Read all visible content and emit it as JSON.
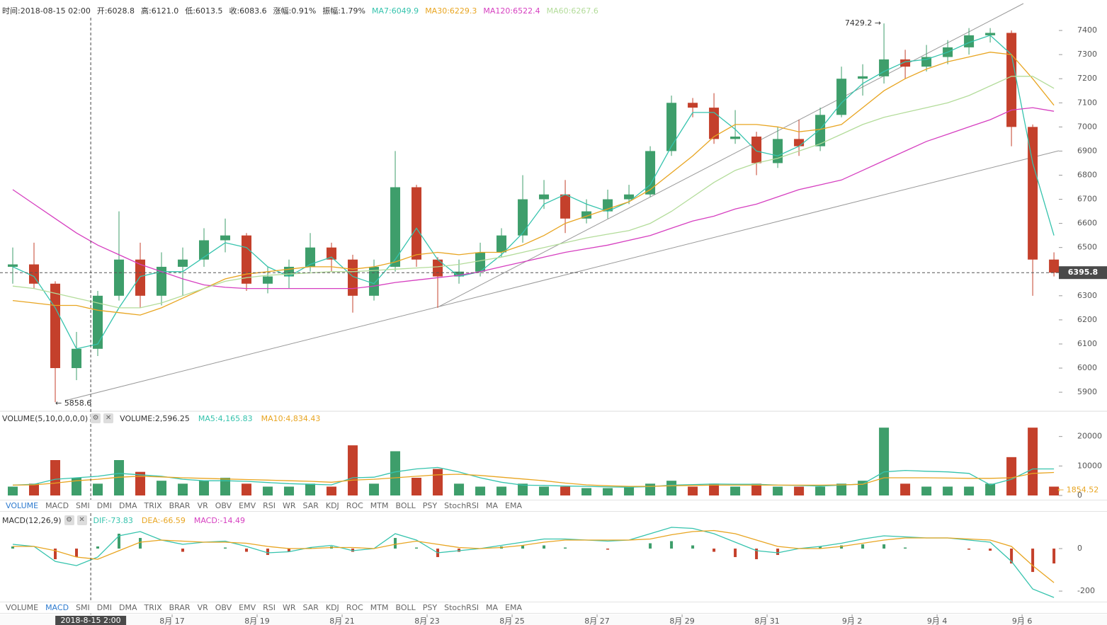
{
  "chart_data": [
    {
      "type": "candlestick",
      "header": [
        {
          "text": "时间:2018-08-15 02:00",
          "color": "#333333"
        },
        {
          "text": "开:6028.8",
          "color": "#333333"
        },
        {
          "text": "高:6121.0",
          "color": "#333333"
        },
        {
          "text": "低:6013.5",
          "color": "#333333"
        },
        {
          "text": "收:6083.6",
          "color": "#333333"
        },
        {
          "text": "涨幅:0.91%",
          "color": "#333333"
        },
        {
          "text": "振幅:1.79%",
          "color": "#333333"
        }
      ],
      "up_color": "#3e9e6b",
      "down_color": "#c4402b",
      "candles": {
        "open": [
          6420,
          6430,
          6350,
          6000,
          6080,
          6300,
          6450,
          6300,
          6420,
          6450,
          6530,
          6550,
          6350,
          6380,
          6420,
          6500,
          6450,
          6300,
          6420,
          6750,
          6450,
          6380,
          6400,
          6480,
          6550,
          6700,
          6720,
          6620,
          6650,
          6700,
          6720,
          6900,
          7100,
          7080,
          6950,
          6960,
          6850,
          6950,
          6920,
          7050,
          7200,
          7210,
          7280,
          7250,
          7290,
          7330,
          7380,
          7390,
          7000,
          6450
        ],
        "high": [
          6500,
          6520,
          6360,
          6150,
          6320,
          6650,
          6520,
          6480,
          6500,
          6580,
          6620,
          6560,
          6420,
          6450,
          6560,
          6520,
          6470,
          6450,
          6900,
          6760,
          6460,
          6450,
          6520,
          6580,
          6800,
          6780,
          6780,
          6700,
          6740,
          6760,
          6920,
          7130,
          7120,
          7140,
          7070,
          6980,
          7000,
          7030,
          7080,
          7250,
          7260,
          7429.2,
          7320,
          7340,
          7360,
          7410,
          7410,
          7400,
          7010,
          6480
        ],
        "low": [
          6350,
          6330,
          5858.6,
          5950,
          6050,
          6280,
          6250,
          6260,
          6300,
          6420,
          6480,
          6320,
          6310,
          6330,
          6400,
          6400,
          6230,
          6280,
          6400,
          6420,
          6250,
          6350,
          6380,
          6460,
          6520,
          6660,
          6560,
          6600,
          6620,
          6680,
          6710,
          6880,
          7040,
          6930,
          6930,
          6800,
          6830,
          6880,
          6900,
          7040,
          7130,
          7180,
          7200,
          7230,
          7260,
          7300,
          7350,
          6920,
          6300,
          6380
        ],
        "close": [
          6430,
          6350,
          6000,
          6080,
          6300,
          6450,
          6300,
          6420,
          6450,
          6530,
          6550,
          6350,
          6380,
          6420,
          6500,
          6450,
          6300,
          6420,
          6750,
          6450,
          6380,
          6400,
          6480,
          6550,
          6700,
          6720,
          6620,
          6650,
          6700,
          6720,
          6900,
          7100,
          7080,
          6950,
          6960,
          6850,
          6950,
          6920,
          7050,
          7200,
          7210,
          7280,
          7250,
          7290,
          7330,
          7380,
          7390,
          7000,
          6450,
          6395.8
        ]
      },
      "series": [
        {
          "label": "MA7:6049.9",
          "color": "#35c3ad",
          "values": [
            6420,
            6380,
            6250,
            6080,
            6100,
            6250,
            6380,
            6400,
            6400,
            6460,
            6520,
            6500,
            6420,
            6380,
            6430,
            6460,
            6380,
            6350,
            6450,
            6580,
            6450,
            6380,
            6400,
            6470,
            6560,
            6680,
            6720,
            6680,
            6650,
            6690,
            6760,
            6920,
            7060,
            7060,
            6990,
            6900,
            6880,
            6920,
            6990,
            7100,
            7180,
            7230,
            7270,
            7280,
            7310,
            7350,
            7380,
            7300,
            6850,
            6550
          ]
        },
        {
          "label": "MA30:6229.3",
          "color": "#e8a521",
          "values": [
            6280,
            6270,
            6260,
            6260,
            6240,
            6230,
            6220,
            6250,
            6290,
            6330,
            6370,
            6390,
            6400,
            6410,
            6420,
            6420,
            6410,
            6420,
            6440,
            6470,
            6480,
            6470,
            6480,
            6480,
            6510,
            6550,
            6600,
            6630,
            6660,
            6690,
            6740,
            6810,
            6880,
            6960,
            7010,
            7010,
            7000,
            6980,
            6990,
            7010,
            7080,
            7150,
            7200,
            7240,
            7270,
            7290,
            7310,
            7300,
            7200,
            7090
          ]
        },
        {
          "label": "MA120:6522.4",
          "color": "#d63fc0",
          "values": [
            6740,
            6680,
            6620,
            6560,
            6510,
            6470,
            6430,
            6400,
            6370,
            6345,
            6335,
            6330,
            6330,
            6330,
            6330,
            6330,
            6330,
            6340,
            6355,
            6365,
            6375,
            6385,
            6400,
            6420,
            6440,
            6460,
            6480,
            6495,
            6510,
            6530,
            6550,
            6580,
            6610,
            6630,
            6660,
            6680,
            6710,
            6740,
            6760,
            6780,
            6820,
            6860,
            6900,
            6940,
            6970,
            7000,
            7030,
            7070,
            7080,
            7065
          ]
        },
        {
          "label": "MA60:6267.6",
          "color": "#b3dc9a",
          "values": [
            6340,
            6330,
            6310,
            6290,
            6270,
            6250,
            6250,
            6270,
            6300,
            6330,
            6360,
            6375,
            6385,
            6390,
            6395,
            6400,
            6400,
            6405,
            6410,
            6415,
            6420,
            6430,
            6445,
            6460,
            6480,
            6500,
            6520,
            6540,
            6555,
            6570,
            6600,
            6650,
            6710,
            6770,
            6820,
            6850,
            6870,
            6900,
            6930,
            6970,
            7010,
            7040,
            7060,
            7080,
            7100,
            7130,
            7170,
            7210,
            7210,
            7160
          ]
        }
      ],
      "high_label": "7429.2 →",
      "low_label": "← 5858.6",
      "last_price": 6395.8,
      "ylim": [
        5824,
        7453
      ],
      "yticks": [
        5900,
        6000,
        6100,
        6200,
        6300,
        6400,
        6500,
        6600,
        6700,
        6800,
        6900,
        7000,
        7100,
        7200,
        7300,
        7400
      ]
    },
    {
      "type": "bar",
      "title": "VOLUME(5,10,0,0,0,0)",
      "value_label": "VOLUME:2,596.25",
      "values": [
        3000,
        4000,
        12000,
        6000,
        4000,
        12000,
        8000,
        5000,
        4000,
        5000,
        6000,
        4000,
        3000,
        3000,
        4000,
        3000,
        17000,
        4000,
        15000,
        6000,
        9000,
        4000,
        3000,
        3000,
        4000,
        3000,
        3000,
        2500,
        2500,
        3000,
        4000,
        5000,
        3000,
        4000,
        3000,
        4000,
        3000,
        3000,
        3000,
        4000,
        5000,
        23000,
        4000,
        3000,
        3000,
        3000,
        4000,
        13000,
        23000,
        3000
      ],
      "series": [
        {
          "label": "MA5:4,165.83",
          "color": "#35c3ad",
          "values": [
            3500,
            3800,
            5500,
            6000,
            6500,
            7500,
            7000,
            6500,
            5500,
            5000,
            5000,
            4800,
            4400,
            4000,
            3800,
            3600,
            6000,
            6200,
            8000,
            9000,
            9500,
            8000,
            6000,
            4500,
            3500,
            3400,
            3200,
            3100,
            2900,
            2800,
            3000,
            3500,
            3700,
            3900,
            3800,
            3800,
            3500,
            3400,
            3200,
            3500,
            3900,
            8000,
            8500,
            8200,
            8000,
            7500,
            3600,
            5500,
            9000,
            9000
          ]
        },
        {
          "label": "MA10:4,834.43",
          "color": "#e8a521",
          "values": [
            3500,
            3600,
            4200,
            5000,
            5500,
            6200,
            6500,
            6300,
            6000,
            5800,
            5600,
            5400,
            5200,
            5000,
            4800,
            4500,
            5200,
            5500,
            6000,
            6500,
            7000,
            7200,
            6800,
            6200,
            5600,
            5000,
            4200,
            3600,
            3300,
            3100,
            3100,
            3300,
            3400,
            3500,
            3500,
            3500,
            3500,
            3500,
            3500,
            3600,
            3800,
            6000,
            6000,
            6000,
            5900,
            5800,
            5800,
            6000,
            7500,
            7800
          ]
        }
      ],
      "last_volume": 1854.52,
      "last_volume_label": "← 1854.52",
      "tabs": [
        "VOLUME",
        "MACD",
        "SMI",
        "DMI",
        "DMA",
        "TRIX",
        "BRAR",
        "VR",
        "OBV",
        "EMV",
        "RSI",
        "WR",
        "SAR",
        "KDJ",
        "ROC",
        "MTM",
        "BOLL",
        "PSY",
        "StochRSI",
        "MA",
        "EMA"
      ],
      "active_tab": 0,
      "ylim": [
        0,
        24000
      ],
      "yticks": [
        0,
        10000,
        20000
      ]
    },
    {
      "type": "macd",
      "title": "MACD(12,26,9)",
      "series": [
        {
          "label": "DIF:-73.83",
          "color": "#35c3ad",
          "values": [
            20,
            10,
            -60,
            -80,
            -40,
            60,
            80,
            40,
            20,
            30,
            35,
            10,
            -20,
            -15,
            5,
            15,
            -10,
            0,
            70,
            40,
            -20,
            -10,
            0,
            15,
            30,
            45,
            45,
            40,
            35,
            40,
            70,
            100,
            95,
            70,
            30,
            -10,
            -20,
            0,
            10,
            25,
            45,
            60,
            55,
            50,
            50,
            40,
            30,
            -60,
            -190,
            -230
          ]
        },
        {
          "label": "DEA:-66.59",
          "color": "#e8a521",
          "values": [
            10,
            10,
            -10,
            -40,
            -50,
            -10,
            30,
            40,
            35,
            30,
            30,
            25,
            10,
            0,
            0,
            5,
            5,
            0,
            20,
            35,
            20,
            5,
            0,
            5,
            15,
            30,
            40,
            40,
            40,
            40,
            45,
            65,
            80,
            85,
            70,
            40,
            10,
            0,
            0,
            10,
            25,
            40,
            50,
            50,
            50,
            45,
            40,
            10,
            -80,
            -160
          ]
        }
      ],
      "histogram": {
        "label": "MACD:-14.49",
        "color": "#d63fc0",
        "up_color": "#3e9e6b",
        "down_color": "#c4402b",
        "values": [
          10,
          0,
          -50,
          -40,
          10,
          70,
          50,
          0,
          -15,
          0,
          5,
          -15,
          -30,
          -15,
          5,
          10,
          -15,
          0,
          50,
          5,
          -40,
          -15,
          0,
          10,
          15,
          15,
          5,
          0,
          -5,
          0,
          25,
          35,
          15,
          -15,
          -40,
          -50,
          -30,
          0,
          10,
          15,
          20,
          20,
          5,
          0,
          0,
          -5,
          -10,
          -70,
          -110,
          -70
        ]
      },
      "tabs": [
        "VOLUME",
        "MACD",
        "SMI",
        "DMI",
        "DMA",
        "TRIX",
        "BRAR",
        "VR",
        "OBV",
        "EMV",
        "RSI",
        "WR",
        "SAR",
        "KDJ",
        "ROC",
        "MTM",
        "BOLL",
        "PSY",
        "StochRSI",
        "MA",
        "EMA"
      ],
      "active_tab": 1,
      "ylim": [
        -243,
        160
      ],
      "yticks": [
        -200,
        0
      ],
      "xlim": [
        -0.1,
        49.73
      ],
      "xticks": [
        {
          "value": 8,
          "label": "8月 17"
        },
        {
          "value": 12,
          "label": "8月 19"
        },
        {
          "value": 16,
          "label": "8月 21"
        },
        {
          "value": 20,
          "label": "8月 23"
        },
        {
          "value": 24,
          "label": "8月 25"
        },
        {
          "value": 28,
          "label": "8月 27"
        },
        {
          "value": 32,
          "label": "8月 29"
        },
        {
          "value": 36,
          "label": "8月 31"
        },
        {
          "value": 40,
          "label": "9月 2"
        },
        {
          "value": 44,
          "label": "9月 4"
        },
        {
          "value": 48,
          "label": "9月 6"
        }
      ],
      "crosshair": {
        "value": 4.17,
        "label": "2018-8-15 2:00"
      }
    }
  ]
}
